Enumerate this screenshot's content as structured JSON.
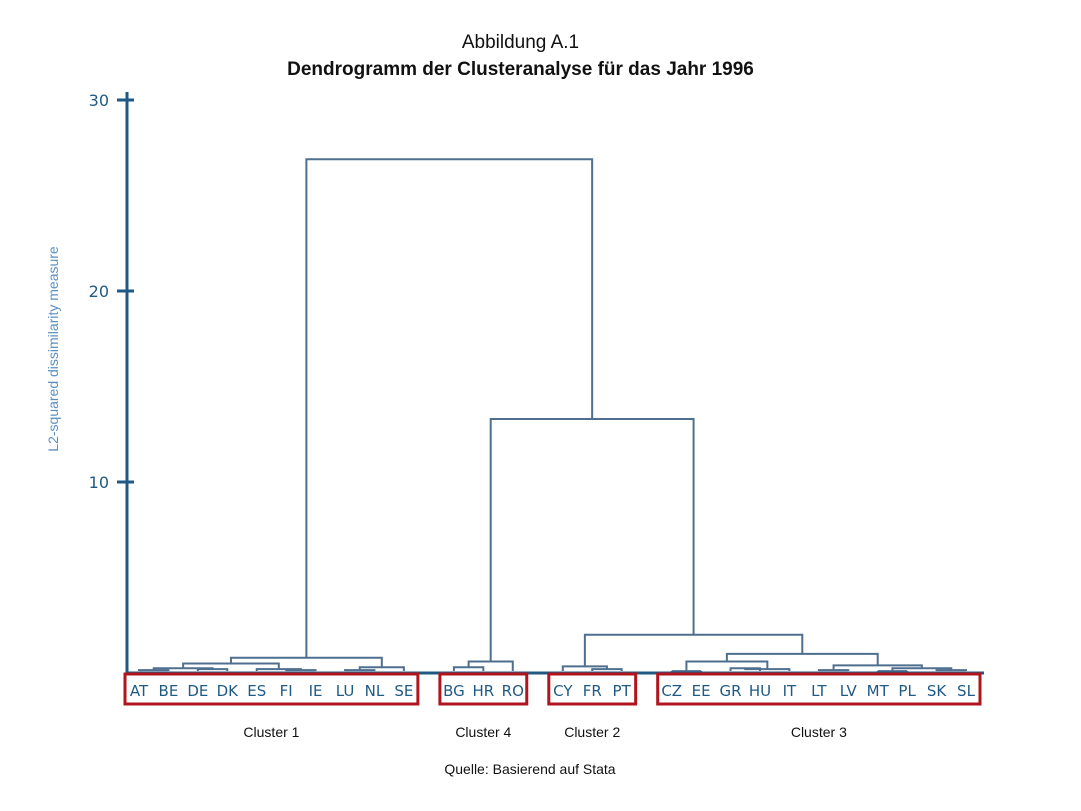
{
  "figure": {
    "label": "Abbildung A.1",
    "title": "Dendrogramm der Clusteranalyse für das Jahr 1996",
    "source": "Quelle: Basierend auf Stata"
  },
  "colors": {
    "axis": "#1f5a85",
    "link": "#4f6f8f",
    "leaf_text": "#1f5a85",
    "ylabel": "#5b8fc2",
    "box": "#b0141c"
  },
  "chart_data": {
    "type": "dendrogram",
    "title": "Dendrogramm der Clusteranalyse für das Jahr 1996",
    "ylabel": "L2-squared dissimilarity measure",
    "xlabel": "",
    "ylim": [
      0,
      30
    ],
    "yticks": [
      10,
      20,
      30
    ],
    "leaves": [
      "AT",
      "BE",
      "DE",
      "DK",
      "ES",
      "FI",
      "IE",
      "LU",
      "NL",
      "SE",
      "BG",
      "HR",
      "RO",
      "CY",
      "FR",
      "PT",
      "CZ",
      "EE",
      "GR",
      "HU",
      "IT",
      "LT",
      "LV",
      "MT",
      "PL",
      "SK",
      "SL"
    ],
    "merges": [
      {
        "id": "m1",
        "left": "AT",
        "right": "BE",
        "height": 0.15
      },
      {
        "id": "m2",
        "left": "DE",
        "right": "DK",
        "height": 0.2
      },
      {
        "id": "m3",
        "left": "m1",
        "right": "m2",
        "height": 0.25
      },
      {
        "id": "m4",
        "left": "FI",
        "right": "IE",
        "height": 0.15
      },
      {
        "id": "m5",
        "left": "ES",
        "right": "m4",
        "height": 0.2
      },
      {
        "id": "m6",
        "left": "m3",
        "right": "m5",
        "height": 0.5
      },
      {
        "id": "m7",
        "left": "LU",
        "right": "NL",
        "height": 0.15
      },
      {
        "id": "m8",
        "left": "m7",
        "right": "SE",
        "height": 0.3
      },
      {
        "id": "m9",
        "left": "m6",
        "right": "m8",
        "height": 0.8
      },
      {
        "id": "m10",
        "left": "BG",
        "right": "HR",
        "height": 0.3
      },
      {
        "id": "m11",
        "left": "m10",
        "right": "RO",
        "height": 0.6
      },
      {
        "id": "m12",
        "left": "FR",
        "right": "PT",
        "height": 0.2
      },
      {
        "id": "m13",
        "left": "CY",
        "right": "m12",
        "height": 0.35
      },
      {
        "id": "m14",
        "left": "CZ",
        "right": "EE",
        "height": 0.1
      },
      {
        "id": "m15",
        "left": "GR",
        "right": "HU",
        "height": 0.25
      },
      {
        "id": "m16",
        "left": "m15",
        "right": "IT",
        "height": 0.2
      },
      {
        "id": "m17",
        "left": "m14",
        "right": "m16",
        "height": 0.6
      },
      {
        "id": "m18",
        "left": "LT",
        "right": "LV",
        "height": 0.15
      },
      {
        "id": "m19",
        "left": "MT",
        "right": "PL",
        "height": 0.1
      },
      {
        "id": "m20",
        "left": "SK",
        "right": "SL",
        "height": 0.15
      },
      {
        "id": "m21",
        "left": "m19",
        "right": "m20",
        "height": 0.25
      },
      {
        "id": "m22",
        "left": "m18",
        "right": "m21",
        "height": 0.4
      },
      {
        "id": "m23",
        "left": "m17",
        "right": "m22",
        "height": 1.0
      },
      {
        "id": "m24",
        "left": "m13",
        "right": "m23",
        "height": 2.0
      },
      {
        "id": "m25",
        "left": "m11",
        "right": "m24",
        "height": 13.3
      },
      {
        "id": "m26",
        "left": "m9",
        "right": "m25",
        "height": 26.9
      }
    ],
    "clusters": [
      {
        "label": "Cluster 1",
        "members": [
          "AT",
          "BE",
          "DE",
          "DK",
          "ES",
          "FI",
          "IE",
          "LU",
          "NL",
          "SE"
        ]
      },
      {
        "label": "Cluster 4",
        "members": [
          "BG",
          "HR",
          "RO"
        ]
      },
      {
        "label": "Cluster 2",
        "members": [
          "CY",
          "FR",
          "PT"
        ]
      },
      {
        "label": "Cluster 3",
        "members": [
          "CZ",
          "EE",
          "GR",
          "HU",
          "IT",
          "LT",
          "LV",
          "MT",
          "PL",
          "SK",
          "SL"
        ]
      }
    ]
  }
}
